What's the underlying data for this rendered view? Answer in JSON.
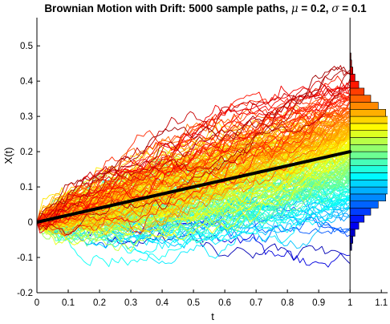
{
  "chart_data": {
    "type": "line",
    "title": {
      "prefix": "Brownian Motion with Drift: 5000 sample paths, ",
      "mu_symbol": "μ",
      "mu_text": " = 0.2, ",
      "sigma_symbol": "σ",
      "sigma_text": " = 0.1"
    },
    "xlabel": "t",
    "ylabel": "X(t)",
    "xlim": [
      0,
      1.12
    ],
    "ylim": [
      -0.2,
      0.58
    ],
    "xticks": [
      0,
      0.1,
      0.2,
      0.3,
      0.4,
      0.5,
      0.6,
      0.7,
      0.8,
      0.9,
      1,
      1.1
    ],
    "xtick_labels": [
      "0",
      "0.1",
      "0.2",
      "0.3",
      "0.4",
      "0.5",
      "0.6",
      "0.7",
      "0.8",
      "0.9",
      "1",
      "1.1"
    ],
    "yticks": [
      -0.2,
      -0.1,
      0,
      0.1,
      0.2,
      0.3,
      0.4,
      0.5
    ],
    "ytick_labels": [
      "-0.2",
      "-0.1",
      "0",
      "0.1",
      "0.2",
      "0.3",
      "0.4",
      "0.5"
    ],
    "paths": {
      "count": 5000,
      "drawn_sample": 240,
      "mu": 0.2,
      "sigma": 0.1,
      "t_start": 0,
      "t_end": 1,
      "steps": 100,
      "colormap": "jet"
    },
    "mean_line": {
      "x": [
        0,
        1
      ],
      "y": [
        0,
        0.2
      ],
      "color": "#000000"
    },
    "histogram": {
      "orientation": "horizontal",
      "x_base": 1,
      "bin_width": 0.02,
      "bin_centers": [
        -0.07,
        -0.05,
        -0.03,
        -0.01,
        0.01,
        0.03,
        0.05,
        0.07,
        0.09,
        0.11,
        0.13,
        0.15,
        0.17,
        0.19,
        0.21,
        0.23,
        0.25,
        0.27,
        0.29,
        0.31,
        0.33,
        0.35,
        0.37,
        0.39,
        0.41,
        0.43,
        0.45,
        0.47
      ],
      "density": [
        0.005,
        0.009,
        0.016,
        0.028,
        0.045,
        0.066,
        0.09,
        0.114,
        0.134,
        0.148,
        0.16,
        0.168,
        0.172,
        0.174,
        0.172,
        0.168,
        0.16,
        0.148,
        0.134,
        0.114,
        0.09,
        0.066,
        0.045,
        0.028,
        0.016,
        0.009,
        0.005,
        0.003
      ]
    }
  }
}
